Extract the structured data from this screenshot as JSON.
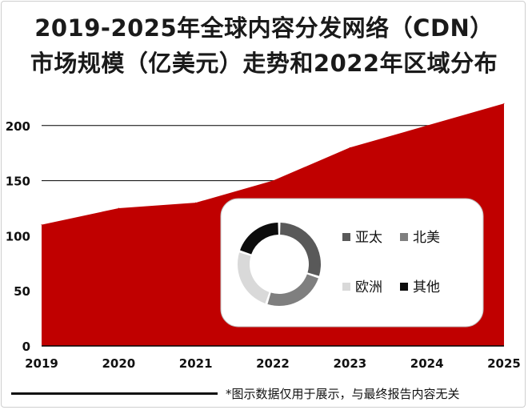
{
  "title": {
    "line1": "2019-2025年全球内容分发网络（CDN）",
    "line2": "市场规模（亿美元）走势和2022年区域分布"
  },
  "footnote": "*图示数据仅用于展示，与最终报告内容无关",
  "colors": {
    "area": "#c00000",
    "gridline": "#000000",
    "donut": [
      "#595959",
      "#7f7f7f",
      "#d9d9d9",
      "#0d0d0d"
    ]
  },
  "chart_data": [
    {
      "type": "area",
      "x": [
        "2019",
        "2020",
        "2021",
        "2022",
        "2023",
        "2024",
        "2025"
      ],
      "values": [
        110,
        125,
        130,
        150,
        180,
        200,
        220
      ],
      "yticks": [
        "0",
        "50",
        "100",
        "150",
        "200"
      ],
      "ylim": [
        0,
        250
      ],
      "grid": true
    },
    {
      "type": "pie",
      "subtype": "donut",
      "categories": [
        "亚太",
        "北美",
        "欧洲",
        "其他"
      ],
      "values": [
        30,
        25,
        25,
        20
      ],
      "legend_position": "right"
    }
  ]
}
